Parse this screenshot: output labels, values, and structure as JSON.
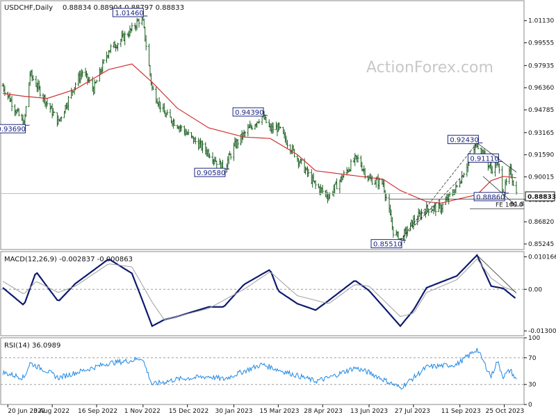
{
  "watermark": "ActionForex.com",
  "panels": {
    "price": {
      "title": "USDCHF,Daily",
      "ohlc": "0.88834 0.88904 0.88797 0.88833",
      "last": "0.88833"
    },
    "macd": {
      "title": "MACD(12,26,9) -0.002837 -0.000863"
    },
    "rsi": {
      "title": "RSI(14) 36.0989"
    }
  },
  "annotations": {
    "levels": [
      "1.01460",
      "0.93690",
      "0.94390",
      "0.90580",
      "0.92430",
      "0.91110",
      "0.88860",
      "0.85510"
    ],
    "fib_label": "61.8",
    "fe_label": "FE 100.0"
  },
  "colors": {
    "candle": "#1b5e20",
    "ma": "#d32f2f",
    "macd": "#0d1a6e",
    "signal": "#9e9e9e",
    "rsi": "#1e88e5",
    "level_box": "#1a237e"
  },
  "chart_data": [
    {
      "type": "candlestick",
      "title": "USDCHF,Daily",
      "ylim": [
        0.8485,
        1.0255
      ],
      "y_ticks": [
        "1.01130",
        "0.99555",
        "0.97935",
        "0.96360",
        "0.94785",
        "0.93165",
        "0.91590",
        "0.90015",
        "0.88395",
        "0.86820",
        "0.85245"
      ],
      "x_ticks": [
        "20 Jun 2022",
        "3 Aug 2022",
        "16 Sep 2022",
        "1 Nov 2022",
        "15 Dec 2022",
        "30 Jan 2023",
        "15 Mar 2023",
        "28 Apr 2023",
        "13 Jun 2023",
        "27 Jul 2023",
        "11 Sep 2023",
        "25 Oct 2023"
      ],
      "x_tick_dates": [
        "2022-06-20",
        "2022-08-03",
        "2022-09-16",
        "2022-11-01",
        "2022-12-15",
        "2023-01-30",
        "2023-03-15",
        "2023-04-28",
        "2023-06-13",
        "2023-07-27",
        "2023-09-11",
        "2023-10-25"
      ],
      "x_range": [
        "2022-06-15",
        "2023-11-06"
      ],
      "series": [
        {
          "name": "close",
          "x": [
            "2022-06-15",
            "2022-07-06",
            "2022-07-12",
            "2022-07-29",
            "2022-08-09",
            "2022-08-26",
            "2022-09-02",
            "2022-09-13",
            "2022-09-28",
            "2022-10-06",
            "2022-10-21",
            "2022-10-31",
            "2022-11-10",
            "2022-11-22",
            "2022-12-05",
            "2022-12-21",
            "2023-01-05",
            "2023-01-20",
            "2023-01-31",
            "2023-02-09",
            "2023-02-27",
            "2023-03-07",
            "2023-03-15",
            "2023-04-03",
            "2023-04-21",
            "2023-05-04",
            "2023-05-30",
            "2023-06-02",
            "2023-06-13",
            "2023-06-27",
            "2023-07-07",
            "2023-07-14",
            "2023-07-27",
            "2023-08-09",
            "2023-08-23",
            "2023-09-08",
            "2023-09-28",
            "2023-10-04",
            "2023-10-12",
            "2023-10-18",
            "2023-10-24",
            "2023-10-31",
            "2023-11-06"
          ],
          "y": [
            0.965,
            0.9369,
            0.9735,
            0.9525,
            0.939,
            0.9665,
            0.975,
            0.9625,
            0.9905,
            0.995,
            1.005,
            1.0146,
            0.963,
            0.945,
            0.9375,
            0.9265,
            0.9175,
            0.9058,
            0.9225,
            0.9305,
            0.9439,
            0.934,
            0.935,
            0.9135,
            0.894,
            0.8865,
            0.9125,
            0.9125,
            0.8985,
            0.8955,
            0.8615,
            0.8551,
            0.8685,
            0.8775,
            0.878,
            0.893,
            0.9243,
            0.9165,
            0.9055,
            0.9111,
            0.8886,
            0.9045,
            0.8883
          ]
        },
        {
          "name": "moving average",
          "x": [
            "2022-06-15",
            "2022-07-06",
            "2022-07-29",
            "2022-08-26",
            "2022-09-28",
            "2022-10-21",
            "2022-11-10",
            "2022-12-05",
            "2023-01-05",
            "2023-02-09",
            "2023-03-07",
            "2023-04-03",
            "2023-04-21",
            "2023-05-30",
            "2023-06-27",
            "2023-07-14",
            "2023-08-09",
            "2023-08-23",
            "2023-09-28",
            "2023-10-12",
            "2023-10-24",
            "2023-11-06"
          ],
          "y": [
            0.9595,
            0.9575,
            0.956,
            0.9625,
            0.9765,
            0.9805,
            0.9675,
            0.949,
            0.935,
            0.9285,
            0.9275,
            0.916,
            0.9045,
            0.901,
            0.8985,
            0.8905,
            0.8825,
            0.8815,
            0.8875,
            0.8975,
            0.9005,
            0.8995
          ]
        }
      ]
    },
    {
      "type": "line",
      "title": "MACD(12,26,9) -0.002837 -0.000863",
      "ylim": [
        -0.0145,
        0.0118
      ],
      "y_ticks": [
        "0.010166",
        "0.00",
        "-0.013006"
      ],
      "series": [
        {
          "name": "MACD",
          "x": [
            "2022-06-15",
            "2022-07-06",
            "2022-07-18",
            "2022-08-09",
            "2022-08-26",
            "2022-09-28",
            "2022-10-21",
            "2022-11-01",
            "2022-11-10",
            "2022-11-22",
            "2022-12-05",
            "2023-01-05",
            "2023-01-20",
            "2023-02-09",
            "2023-03-07",
            "2023-03-15",
            "2023-04-03",
            "2023-04-21",
            "2023-05-04",
            "2023-05-30",
            "2023-06-13",
            "2023-07-14",
            "2023-07-27",
            "2023-08-09",
            "2023-09-08",
            "2023-09-28",
            "2023-10-12",
            "2023-10-24",
            "2023-11-06"
          ],
          "y": [
            0.0005,
            -0.005,
            0.0055,
            -0.0038,
            0.0018,
            0.0095,
            0.005,
            -0.004,
            -0.0115,
            -0.0095,
            -0.0085,
            -0.0055,
            -0.0055,
            0.0015,
            0.0062,
            -0.0005,
            -0.0045,
            -0.0065,
            -0.0035,
            0.0028,
            -0.0004,
            -0.0115,
            -0.0065,
            0.0005,
            0.0042,
            0.0107,
            0.001,
            0.0003,
            -0.003
          ]
        },
        {
          "name": "Signal",
          "x": [
            "2022-06-15",
            "2022-07-06",
            "2022-07-18",
            "2022-08-09",
            "2022-08-26",
            "2022-09-28",
            "2022-10-21",
            "2022-11-10",
            "2022-11-22",
            "2022-12-05",
            "2023-01-05",
            "2023-02-09",
            "2023-03-07",
            "2023-04-03",
            "2023-05-04",
            "2023-05-30",
            "2023-06-13",
            "2023-07-14",
            "2023-07-27",
            "2023-08-09",
            "2023-09-08",
            "2023-09-28",
            "2023-10-12",
            "2023-10-24",
            "2023-11-06"
          ],
          "y": [
            0.0025,
            -0.0015,
            0.0025,
            -0.001,
            0.001,
            0.008,
            0.007,
            -0.004,
            -0.0095,
            -0.0085,
            -0.006,
            0.0,
            0.0055,
            -0.002,
            -0.0045,
            0.0015,
            0.001,
            -0.0085,
            -0.0075,
            -0.001,
            0.003,
            0.0095,
            0.0035,
            0.0008,
            -0.0008
          ]
        }
      ]
    },
    {
      "type": "line",
      "title": "RSI(14) 36.0989",
      "ylim": [
        0,
        100
      ],
      "y_ticks": [
        100,
        70,
        30,
        0
      ],
      "reference_lines": [
        70,
        30
      ],
      "series": [
        {
          "name": "RSI",
          "x": [
            "2022-06-15",
            "2022-07-06",
            "2022-07-12",
            "2022-07-29",
            "2022-08-09",
            "2022-09-28",
            "2022-10-21",
            "2022-10-31",
            "2022-11-10",
            "2022-12-05",
            "2023-01-05",
            "2023-01-20",
            "2023-02-09",
            "2023-02-27",
            "2023-03-15",
            "2023-04-21",
            "2023-05-04",
            "2023-05-30",
            "2023-06-13",
            "2023-07-14",
            "2023-07-27",
            "2023-08-09",
            "2023-09-08",
            "2023-09-28",
            "2023-10-12",
            "2023-10-18",
            "2023-10-24",
            "2023-10-31",
            "2023-11-06"
          ],
          "y": [
            48,
            40,
            62,
            50,
            40,
            62,
            66,
            70,
            30,
            38,
            42,
            38,
            50,
            60,
            52,
            35,
            40,
            55,
            48,
            25,
            40,
            56,
            60,
            83,
            42,
            65,
            42,
            52,
            36
          ]
        }
      ]
    }
  ]
}
